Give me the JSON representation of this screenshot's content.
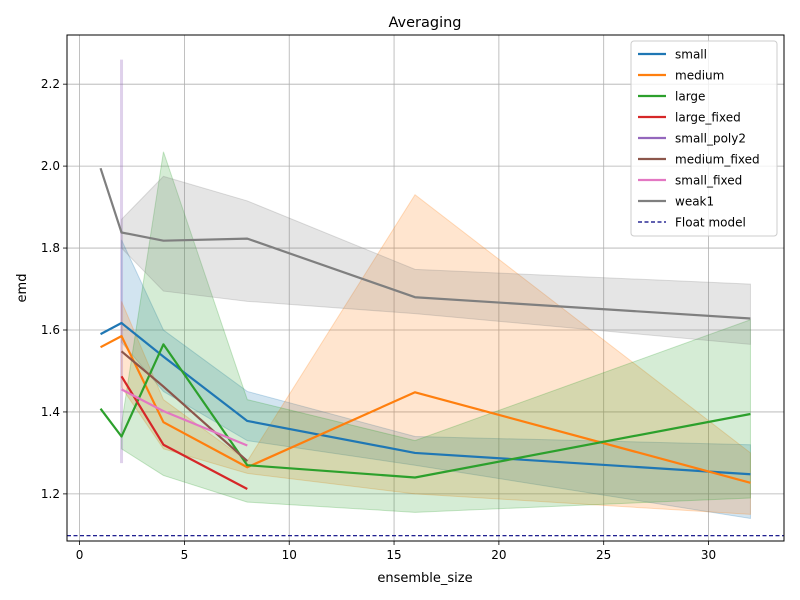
{
  "chart_data": {
    "type": "line",
    "title": "Averaging",
    "xlabel": "ensemble_size",
    "ylabel": "emd",
    "xlim": [
      -0.6,
      33.6
    ],
    "ylim": [
      1.085,
      2.32
    ],
    "xticks": [
      0,
      5,
      10,
      15,
      20,
      25,
      30
    ],
    "yticks": [
      1.2,
      1.4,
      1.6,
      1.8,
      2.0,
      2.2
    ],
    "grid": true,
    "legend_position": "top-right",
    "series": [
      {
        "name": "small",
        "color": "#1f77b4",
        "x": [
          1,
          2,
          4,
          8,
          16,
          32
        ],
        "y": [
          1.59,
          1.617,
          1.535,
          1.378,
          1.3,
          1.248
        ],
        "band_lower": [
          null,
          1.57,
          1.45,
          1.33,
          1.27,
          1.14
        ],
        "band_upper": [
          null,
          1.82,
          1.6,
          1.45,
          1.34,
          1.32
        ]
      },
      {
        "name": "medium",
        "color": "#ff7f0e",
        "x": [
          1,
          2,
          4,
          8,
          16,
          32
        ],
        "y": [
          1.558,
          1.585,
          1.375,
          1.265,
          1.448,
          1.227
        ],
        "band_lower": [
          null,
          1.46,
          1.31,
          1.25,
          1.2,
          1.15
        ],
        "band_upper": [
          null,
          1.67,
          1.43,
          1.28,
          1.93,
          1.3
        ]
      },
      {
        "name": "large",
        "color": "#2ca02c",
        "x": [
          1,
          2,
          4,
          8,
          16,
          32
        ],
        "y": [
          1.408,
          1.34,
          1.565,
          1.27,
          1.24,
          1.395
        ],
        "band_lower": [
          null,
          1.31,
          1.245,
          1.18,
          1.155,
          1.19
        ],
        "band_upper": [
          null,
          1.37,
          2.035,
          1.43,
          1.33,
          1.625
        ]
      },
      {
        "name": "large_fixed",
        "color": "#d62728",
        "x": [
          2,
          4,
          8
        ],
        "y": [
          1.487,
          1.32,
          1.212
        ],
        "band_lower": [],
        "band_upper": []
      },
      {
        "name": "small_poly2",
        "color": "#9467bd",
        "x": [
          2
        ],
        "y": [
          1.76
        ],
        "band_lower": [
          1.275
        ],
        "band_upper": [
          2.26
        ]
      },
      {
        "name": "medium_fixed",
        "color": "#8c564b",
        "x": [
          2,
          4,
          8
        ],
        "y": [
          1.548,
          1.462,
          1.28
        ],
        "band_lower": [],
        "band_upper": []
      },
      {
        "name": "small_fixed",
        "color": "#e377c2",
        "x": [
          2,
          4,
          8
        ],
        "y": [
          1.455,
          1.402,
          1.318
        ],
        "band_lower": [],
        "band_upper": []
      },
      {
        "name": "weak1",
        "color": "#7f7f7f",
        "x": [
          1,
          2,
          4,
          8,
          16,
          32
        ],
        "y": [
          1.995,
          1.838,
          1.818,
          1.823,
          1.68,
          1.628
        ],
        "band_lower": [
          null,
          1.8,
          1.695,
          1.67,
          1.64,
          1.565
        ],
        "band_upper": [
          null,
          1.87,
          1.975,
          1.915,
          1.748,
          1.712
        ]
      }
    ],
    "reference_line": {
      "name": "Float model",
      "y": 1.098,
      "color": "#000080",
      "style": "dashed"
    }
  }
}
